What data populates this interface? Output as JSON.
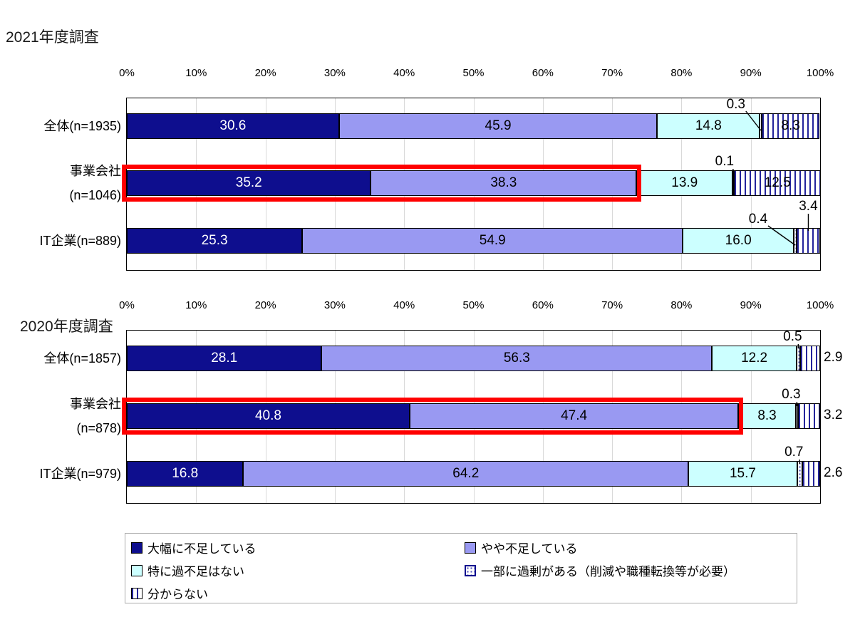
{
  "page": {
    "background": "#FFFFFF"
  },
  "chart_data": [
    {
      "type": "bar",
      "orientation": "horizontal",
      "stacked": true,
      "title": "2021年度調査",
      "categories": [
        "全体(n=1935)",
        "事業会社\n(n=1046)",
        "IT企業(n=889)"
      ],
      "series": [
        {
          "name": "大幅に不足している",
          "values": [
            30.6,
            35.2,
            25.3
          ]
        },
        {
          "name": "やや不足している",
          "values": [
            45.9,
            38.3,
            54.9
          ]
        },
        {
          "name": "特に過不足はない",
          "values": [
            14.8,
            13.9,
            16.0
          ]
        },
        {
          "name": "一部に過剰がある（削減や職種転換等が必要）",
          "values": [
            0.3,
            0.1,
            0.4
          ]
        },
        {
          "name": "分からない",
          "values": [
            8.3,
            12.5,
            3.4
          ]
        }
      ],
      "xlim": [
        0,
        100
      ],
      "tick_labels": [
        "0%",
        "10%",
        "20%",
        "30%",
        "40%",
        "50%",
        "60%",
        "70%",
        "80%",
        "90%",
        "100%"
      ],
      "grid": true,
      "highlighted_categories": [
        "事業会社\n(n=1046)"
      ]
    },
    {
      "type": "bar",
      "orientation": "horizontal",
      "stacked": true,
      "title": "2020年度調査",
      "categories": [
        "全体(n=1857)",
        "事業会社\n(n=878)",
        "IT企業(n=979)"
      ],
      "series": [
        {
          "name": "大幅に不足している",
          "values": [
            28.1,
            40.8,
            16.8
          ]
        },
        {
          "name": "やや不足している",
          "values": [
            56.3,
            47.4,
            64.2
          ]
        },
        {
          "name": "特に過不足はない",
          "values": [
            12.2,
            8.3,
            15.7
          ]
        },
        {
          "name": "一部に過剰がある（削減や職種転換等が必要）",
          "values": [
            0.5,
            0.3,
            0.7
          ]
        },
        {
          "name": "分からない",
          "values": [
            2.9,
            3.2,
            2.6
          ]
        }
      ],
      "xlim": [
        0,
        100
      ],
      "tick_labels": [
        "0%",
        "10%",
        "20%",
        "30%",
        "40%",
        "50%",
        "60%",
        "70%",
        "80%",
        "90%",
        "100%"
      ],
      "grid": true,
      "highlighted_categories": [
        "事業会社\n(n=878)"
      ]
    }
  ],
  "styles": {
    "series_colors": [
      "#0E0E8E",
      "#9999F2",
      "#CCFFFF",
      "#FFFFFF",
      "#FFFFFF"
    ],
    "series_patterns": [
      "solid",
      "solid",
      "solid",
      "dots",
      "vertical-stripes"
    ],
    "series_value_text_colors": [
      "#FFFFFF",
      "#000000",
      "#000000",
      "#000000",
      "#000000"
    ],
    "highlight_box_color": "#FF0000",
    "gridline_color": "#D9D9D9",
    "legend_border_color": "#ABABAB"
  },
  "legend": {
    "position": "bottom",
    "items": [
      "大幅に不足している",
      "やや不足している",
      "特に過不足はない",
      "一部に過剰がある（削減や職種転換等が必要）",
      "分からない"
    ]
  }
}
